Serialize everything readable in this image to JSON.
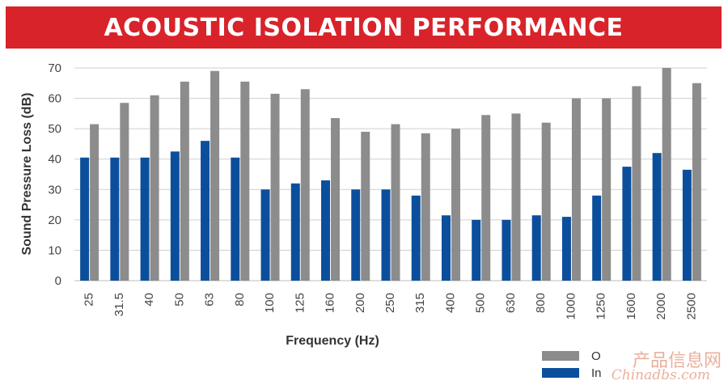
{
  "chart_data": {
    "type": "bar",
    "title": "ACOUSTIC ISOLATION PERFORMANCE",
    "xlabel": "Frequency (Hz)",
    "ylabel": "Sound Pressure Loss (dB)",
    "ylim": [
      0,
      70
    ],
    "yticks": [
      "0",
      "10",
      "20",
      "30",
      "40",
      "50",
      "60",
      "70"
    ],
    "grid": true,
    "legend_position": "bottom-right",
    "categories": [
      "25",
      "31.5",
      "40",
      "50",
      "63",
      "80",
      "100",
      "125",
      "160",
      "200",
      "250",
      "315",
      "400",
      "500",
      "630",
      "800",
      "1000",
      "1250",
      "1600",
      "2000",
      "2500"
    ],
    "series": [
      {
        "name": "In",
        "color": "#0b4f9c",
        "values": [
          40.5,
          40.5,
          40.5,
          42.5,
          46,
          40.5,
          30,
          32,
          33,
          30,
          30,
          28,
          21.5,
          20,
          20,
          21.5,
          21,
          28,
          37.5,
          42,
          36.5
        ]
      },
      {
        "name": "O",
        "color": "#8c8c8c",
        "values": [
          51.5,
          58.5,
          61,
          65.5,
          69,
          65.5,
          61.5,
          63,
          53.5,
          49,
          51.5,
          48.5,
          50,
          54.5,
          55,
          52,
          60,
          60,
          64,
          70,
          65
        ]
      }
    ]
  },
  "watermark": {
    "cn": "产品信息网",
    "en": "Chinadbs.com"
  }
}
